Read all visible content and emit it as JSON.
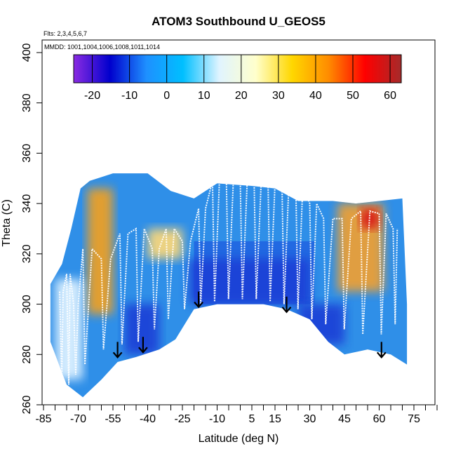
{
  "chart_data": {
    "type": "heatmap",
    "title": "ATOM3 Southbound U_GEOS5",
    "flights_label": "Flts: 2,3,4,5,6,7",
    "dates_label": "MMDD: 1001,1004,1006,1008,1011,1014",
    "xlabel": "Latitude (deg N)",
    "ylabel": "Theta (C)",
    "xlim": [
      -85,
      85
    ],
    "ylim": [
      260,
      405
    ],
    "x_ticks": [
      "-85",
      "-70",
      "-55",
      "-40",
      "-25",
      "-10",
      "5",
      "15",
      "30",
      "45",
      "60",
      "75"
    ],
    "x_tick_values": [
      -85,
      -70,
      -55,
      -40,
      -25,
      -10,
      5,
      15,
      30,
      45,
      60,
      75
    ],
    "y_ticks": [
      "260",
      "280",
      "300",
      "320",
      "340",
      "360",
      "380",
      "400"
    ],
    "y_tick_values": [
      260,
      280,
      300,
      320,
      340,
      360,
      380,
      400
    ],
    "colorbar": {
      "range": [
        -25,
        63
      ],
      "tick_labels": [
        "-20",
        "-10",
        "0",
        "10",
        "20",
        "30",
        "40",
        "50",
        "60"
      ],
      "tick_values": [
        -20,
        -10,
        0,
        10,
        20,
        30,
        40,
        50,
        60
      ],
      "colors": [
        "#8a2be2",
        "#0000cd",
        "#1e90ff",
        "#00bfff",
        "#e0f4ff",
        "#ffffcc",
        "#ffd700",
        "#ff8c00",
        "#ff0000",
        "#a52a2a"
      ]
    },
    "arrows_lat": [
      -53,
      -42,
      -18,
      20,
      61
    ],
    "arrows_theta": [
      285,
      287,
      305,
      303,
      285
    ],
    "upper_boundary": [
      [
        -82,
        308
      ],
      [
        -77,
        316
      ],
      [
        -73,
        330
      ],
      [
        -69,
        346
      ],
      [
        -65,
        349
      ],
      [
        -55,
        352
      ],
      [
        -40,
        352
      ],
      [
        -30,
        345
      ],
      [
        -20,
        342
      ],
      [
        -10,
        348
      ],
      [
        5,
        347
      ],
      [
        15,
        346
      ],
      [
        25,
        341
      ],
      [
        40,
        341
      ],
      [
        50,
        340
      ],
      [
        60,
        341
      ],
      [
        70,
        342
      ],
      [
        72,
        300
      ]
    ],
    "lower_boundary": [
      [
        72,
        276
      ],
      [
        65,
        280
      ],
      [
        55,
        282
      ],
      [
        45,
        280
      ],
      [
        38,
        285
      ],
      [
        30,
        294
      ],
      [
        20,
        298
      ],
      [
        10,
        300
      ],
      [
        0,
        300
      ],
      [
        -10,
        300
      ],
      [
        -20,
        298
      ],
      [
        -28,
        286
      ],
      [
        -35,
        282
      ],
      [
        -45,
        279
      ],
      [
        -53,
        277
      ],
      [
        -60,
        270
      ],
      [
        -68,
        263
      ],
      [
        -75,
        268
      ],
      [
        -82,
        285
      ]
    ],
    "fill_regions": [
      {
        "name": "warm-tongue-south",
        "color": "#f0a020",
        "lat": [
          -66,
          -55
        ],
        "theta": [
          296,
          346
        ]
      },
      {
        "name": "warm-band-south-mid",
        "color": "#fcd87a",
        "lat": [
          -40,
          -25
        ],
        "theta": [
          318,
          330
        ]
      },
      {
        "name": "warm-tongue-north",
        "color": "#f0a030",
        "lat": [
          42,
          62
        ],
        "theta": [
          305,
          340
        ]
      },
      {
        "name": "hotspot-north",
        "color": "#d81818",
        "lat": [
          52,
          60
        ],
        "theta": [
          330,
          338
        ]
      },
      {
        "name": "deep-blue-tropics",
        "color": "#1a3fd6",
        "lat": [
          -22,
          30
        ],
        "theta": [
          300,
          318
        ]
      },
      {
        "name": "deep-blue-south",
        "color": "#1a3fd6",
        "lat": [
          -50,
          -35
        ],
        "theta": [
          280,
          300
        ]
      },
      {
        "name": "deep-blue-north",
        "color": "#1a3fd6",
        "lat": [
          25,
          45
        ],
        "theta": [
          284,
          300
        ]
      },
      {
        "name": "pale-south",
        "color": "#dff2ff",
        "lat": [
          -80,
          -68
        ],
        "theta": [
          270,
          310
        ]
      }
    ],
    "flight_track_lat": [
      -78,
      -75,
      -72,
      -68,
      -60,
      -52,
      -45,
      -38,
      -32,
      -25,
      -18,
      -12,
      -6,
      0,
      6,
      12,
      18,
      24,
      30,
      36,
      44,
      52,
      60,
      66
    ],
    "flight_track_peak": [
      305,
      312,
      300,
      322,
      318,
      328,
      330,
      322,
      330,
      325,
      338,
      349,
      349,
      349,
      348,
      348,
      348,
      347,
      340,
      334,
      334,
      337,
      336,
      330
    ],
    "flight_track_trough": [
      270,
      268,
      272,
      276,
      282,
      284,
      285,
      290,
      294,
      298,
      300,
      301,
      302,
      302,
      302,
      301,
      300,
      298,
      294,
      292,
      290,
      288,
      288,
      292
    ]
  }
}
